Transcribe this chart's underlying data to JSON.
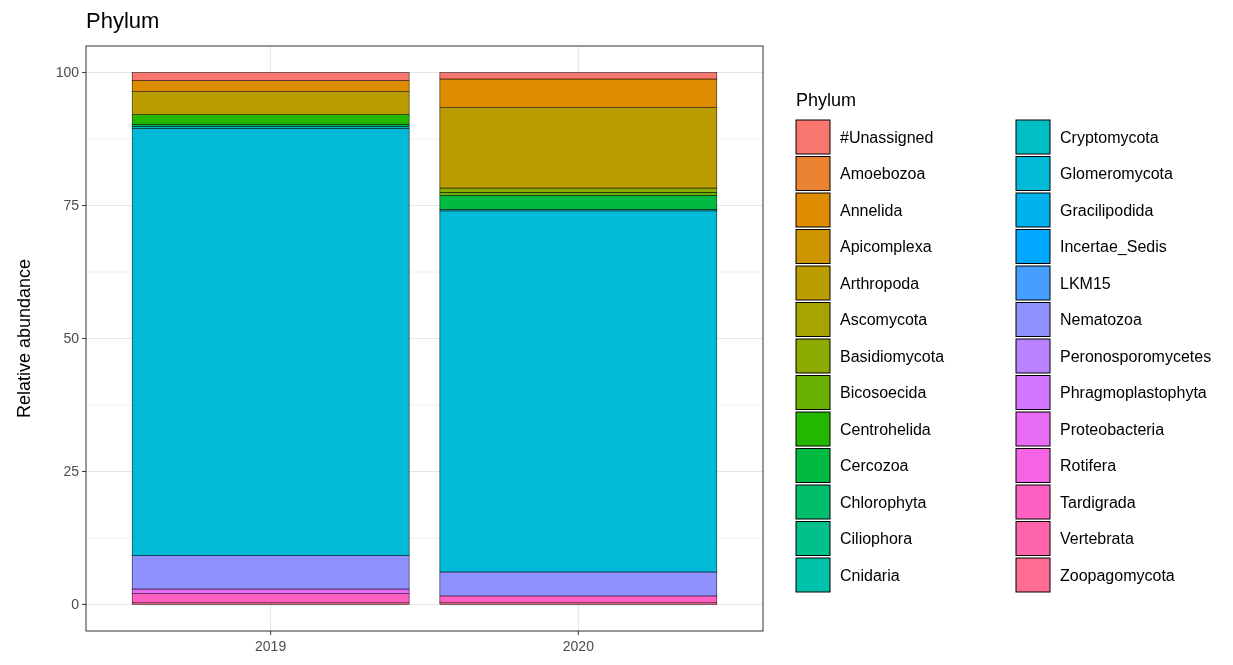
{
  "chart_data": {
    "type": "bar",
    "title": "Phylum",
    "ylabel": "Relative abundance",
    "legend_title": "Phylum",
    "categories": [
      "2019",
      "2020"
    ],
    "stacked": true,
    "ylim": [
      -5,
      105
    ],
    "yticks": [
      0,
      25,
      50,
      75,
      100
    ],
    "grid": true,
    "legend": "right",
    "series": [
      {
        "name": "Zoopagomycota",
        "color": "#ff6c91",
        "values": [
          0.3,
          0.3
        ]
      },
      {
        "name": "Vertebrata",
        "color": "#ff65ac",
        "values": [
          0,
          0
        ]
      },
      {
        "name": "Tardigrada",
        "color": "#ff61c3",
        "values": [
          1.7,
          1.3
        ]
      },
      {
        "name": "Rotifera",
        "color": "#f564e3",
        "values": [
          0,
          0
        ]
      },
      {
        "name": "Proteobacteria",
        "color": "#e76bf3",
        "values": [
          0.9,
          0
        ]
      },
      {
        "name": "Phragmoplastophyta",
        "color": "#d376ff",
        "values": [
          0,
          0
        ]
      },
      {
        "name": "Peronosporomycetes",
        "color": "#b983ff",
        "values": [
          0,
          0
        ]
      },
      {
        "name": "Nematozoa",
        "color": "#8f91ff",
        "values": [
          6.3,
          4.5
        ]
      },
      {
        "name": "LKM15",
        "color": "#469fff",
        "values": [
          0,
          0
        ]
      },
      {
        "name": "Incertae_Sedis",
        "color": "#00a9ff",
        "values": [
          0,
          0
        ]
      },
      {
        "name": "Gracilipodida",
        "color": "#00b2eb",
        "values": [
          0,
          0
        ]
      },
      {
        "name": "Glomeromycota",
        "color": "#00bad8",
        "values": [
          80.3,
          67.9
        ]
      },
      {
        "name": "Cryptomycota",
        "color": "#00bfc4",
        "values": [
          0.4,
          0.3
        ]
      },
      {
        "name": "Cnidaria",
        "color": "#00c1a9",
        "values": [
          0,
          0
        ]
      },
      {
        "name": "Ciliophora",
        "color": "#00c08b",
        "values": [
          0,
          0
        ]
      },
      {
        "name": "Chlorophyta",
        "color": "#00be6c",
        "values": [
          0,
          0
        ]
      },
      {
        "name": "Cercozoa",
        "color": "#00ba42",
        "values": [
          0.4,
          2.6
        ]
      },
      {
        "name": "Centrohelida",
        "color": "#24b700",
        "values": [
          1.8,
          0
        ]
      },
      {
        "name": "Bicosoecida",
        "color": "#68b100",
        "values": [
          0,
          0.6
        ]
      },
      {
        "name": "Basidiomycota",
        "color": "#8cab00",
        "values": [
          0,
          0.8
        ]
      },
      {
        "name": "Ascomycota",
        "color": "#a5a400",
        "values": [
          0,
          0
        ]
      },
      {
        "name": "Arthropoda",
        "color": "#bb9d00",
        "values": [
          4.3,
          15.1
        ]
      },
      {
        "name": "Apicomplexa",
        "color": "#cd9600",
        "values": [
          0,
          0
        ]
      },
      {
        "name": "Annelida",
        "color": "#de8c00",
        "values": [
          2.1,
          5.4
        ]
      },
      {
        "name": "Amoebozoa",
        "color": "#ea8331",
        "values": [
          0,
          0
        ]
      },
      {
        "name": "#Unassigned",
        "color": "#f8766d",
        "values": [
          1.5,
          1.2
        ]
      }
    ]
  }
}
